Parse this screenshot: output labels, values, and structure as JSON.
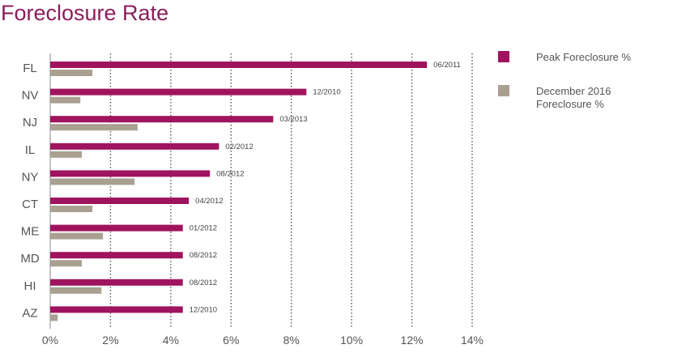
{
  "title": "Foreclosure Rate",
  "colors": {
    "peak": "#a0135e",
    "dec2016": "#aaa091",
    "grid": "#555555",
    "text": "#555555"
  },
  "chart_data": {
    "type": "bar",
    "orientation": "horizontal",
    "title": "Foreclosure Rate",
    "categories": [
      "FL",
      "NV",
      "NJ",
      "IL",
      "NY",
      "CT",
      "ME",
      "MD",
      "HI",
      "AZ"
    ],
    "series": [
      {
        "name": "Peak Foreclosure %",
        "values": [
          12.5,
          8.5,
          7.4,
          5.6,
          5.3,
          4.6,
          4.4,
          4.4,
          4.4,
          4.4
        ]
      },
      {
        "name": "December 2016 Foreclosure %",
        "values": [
          1.4,
          1.0,
          2.9,
          1.05,
          2.8,
          1.4,
          1.75,
          1.05,
          1.7,
          0.25
        ]
      }
    ],
    "peak_dates": [
      "06/2011",
      "12/2010",
      "03/2013",
      "02/2012",
      "08/2012",
      "04/2012",
      "01/2012",
      "08/2012",
      "08/2012",
      "12/2010"
    ],
    "xlim": [
      0,
      14
    ],
    "xticks": [
      "0%",
      "2%",
      "4%",
      "6%",
      "8%",
      "10%",
      "12%",
      "14%"
    ],
    "grid": "vertical dotted",
    "legend": "right"
  }
}
